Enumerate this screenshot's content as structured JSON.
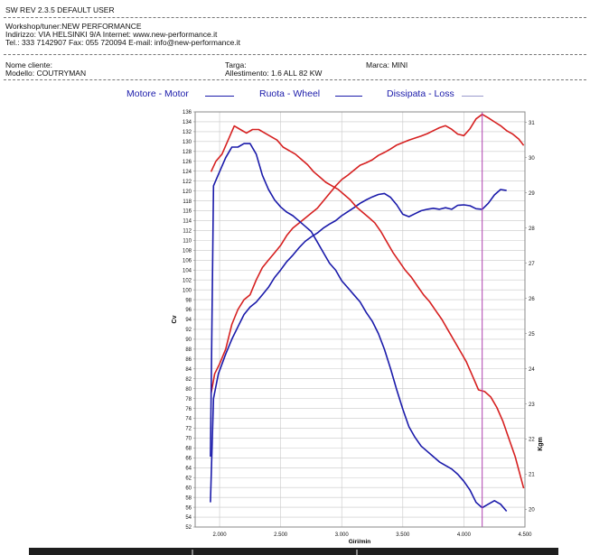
{
  "header": {
    "software": "SW REV 2.3.5   DEFAULT USER",
    "workshop": "Workshop/tuner:NEW PERFORMANCE",
    "address": "Indirizzo: VIA HELSINKI 9/A Internet: www.new-performance.it",
    "contacts": "Tel.: 333 7142907 Fax: 055 720094 E-mail: info@new-performance.it"
  },
  "vehicle": {
    "client_label": "Nome cliente:",
    "model_label": "Modello: COUTRYMAN",
    "plate_label": "Targa:",
    "setup_label": "Allestimento: 1.6 ALL 82 KW",
    "make_label": "Marca: MINI"
  },
  "legend": [
    {
      "name": "Motore - Motor",
      "color": "#d62020",
      "style": "solid"
    },
    {
      "name": "Ruota - Wheel",
      "color": "#1a1aaa",
      "style": "solid"
    },
    {
      "name": "Dissipata - Loss",
      "color": "#9a9acc",
      "style": "thin"
    }
  ],
  "colors": {
    "engine": "#d62020",
    "wheel": "#1a1aaa",
    "cursor": "#b040b0",
    "grid": "#c8c8c8"
  },
  "chart_data": {
    "type": "line",
    "xlabel": "Giri/min",
    "ylabel": "Cv",
    "y2label": "Kgm",
    "xlim": [
      1800,
      4500
    ],
    "ylim": [
      52,
      136
    ],
    "y2lim": [
      19.5,
      31.3
    ],
    "x_ticks": [
      "2.000",
      "2.500",
      "3.000",
      "3.500",
      "4.000",
      "4.500"
    ],
    "x_tick_values": [
      2000,
      2500,
      3000,
      3500,
      4000,
      4500
    ],
    "y_tick_values": [
      52,
      54,
      56,
      58,
      60,
      62,
      64,
      66,
      68,
      70,
      72,
      74,
      76,
      78,
      80,
      82,
      84,
      86,
      88,
      90,
      92,
      94,
      96,
      98,
      100,
      102,
      104,
      106,
      108,
      110,
      112,
      114,
      116,
      118,
      120,
      122,
      124,
      126,
      128,
      130,
      132,
      134,
      136
    ],
    "y2_tick_values": [
      20,
      21,
      22,
      23,
      24,
      25,
      26,
      27,
      28,
      29,
      30,
      31
    ],
    "grid": true,
    "cursor_rpm": 4150,
    "series": [
      {
        "name": "Motore - Motor",
        "key": "engine_power",
        "axis": "left",
        "x": [
          1930,
          1960,
          2000,
          2050,
          2100,
          2150,
          2200,
          2250,
          2300,
          2350,
          2400,
          2450,
          2500,
          2550,
          2600,
          2650,
          2700,
          2750,
          2800,
          2850,
          2900,
          2950,
          3000,
          3050,
          3100,
          3150,
          3200,
          3250,
          3300,
          3350,
          3400,
          3450,
          3500,
          3550,
          3600,
          3650,
          3700,
          3750,
          3800,
          3850,
          3900,
          3950,
          4000,
          4050,
          4100,
          4150,
          4200,
          4250,
          4300,
          4350,
          4400,
          4450,
          4490
        ],
        "y": [
          79,
          83,
          85,
          88,
          93,
          96,
          98,
          99,
          102,
          104.5,
          106,
          107.5,
          109,
          111,
          112.5,
          113.5,
          114.5,
          115.5,
          116.5,
          118,
          119.5,
          121,
          122.3,
          123.2,
          124.2,
          125.2,
          125.7,
          126.3,
          127.2,
          127.8,
          128.5,
          129.3,
          129.8,
          130.3,
          130.7,
          131.1,
          131.6,
          132.2,
          132.8,
          133.2,
          132.5,
          131.5,
          131.2,
          132.6,
          134.6,
          135.5,
          134.8,
          134,
          133.2,
          132.2,
          131.5,
          130.5,
          129.2
        ]
      },
      {
        "name": "Ruota - Wheel",
        "key": "wheel_power",
        "axis": "left",
        "x": [
          1925,
          1950,
          1990,
          2050,
          2100,
          2150,
          2200,
          2250,
          2300,
          2350,
          2400,
          2450,
          2500,
          2550,
          2600,
          2650,
          2700,
          2750,
          2800,
          2850,
          2900,
          2950,
          3000,
          3050,
          3100,
          3150,
          3200,
          3250,
          3300,
          3350,
          3400,
          3450,
          3500,
          3550,
          3600,
          3650,
          3700,
          3750,
          3800,
          3850,
          3900,
          3950,
          4000,
          4050,
          4100,
          4150,
          4200,
          4250,
          4300,
          4350
        ],
        "y": [
          57,
          78,
          83,
          87,
          90,
          92.5,
          95,
          96.5,
          97.5,
          99,
          100.5,
          102.5,
          104,
          105.7,
          107,
          108.5,
          109.8,
          110.7,
          111.5,
          112.5,
          113.3,
          114,
          115,
          115.8,
          116.6,
          117.5,
          118.2,
          118.8,
          119.3,
          119.5,
          118.7,
          117.2,
          115.3,
          114.8,
          115.4,
          116,
          116.3,
          116.5,
          116.3,
          116.6,
          116.3,
          117.1,
          117.2,
          117,
          116.4,
          116.3,
          117.5,
          119.2,
          120.3,
          120.1
        ]
      },
      {
        "name": "Motore - Motor (coppia)",
        "key": "engine_torque",
        "axis": "right",
        "x": [
          1930,
          1970,
          2020,
          2070,
          2120,
          2170,
          2220,
          2270,
          2320,
          2370,
          2420,
          2470,
          2520,
          2570,
          2620,
          2670,
          2720,
          2770,
          2820,
          2870,
          2920,
          2970,
          3020,
          3070,
          3120,
          3170,
          3220,
          3270,
          3320,
          3370,
          3420,
          3470,
          3520,
          3570,
          3620,
          3670,
          3720,
          3770,
          3820,
          3870,
          3920,
          3970,
          4020,
          4070,
          4120,
          4170,
          4220,
          4270,
          4320,
          4370,
          4420,
          4490
        ],
        "y": [
          29.6,
          29.9,
          30.1,
          30.5,
          30.9,
          30.8,
          30.7,
          30.8,
          30.8,
          30.7,
          30.6,
          30.5,
          30.3,
          30.2,
          30.1,
          29.95,
          29.8,
          29.6,
          29.45,
          29.3,
          29.2,
          29.1,
          28.95,
          28.8,
          28.6,
          28.45,
          28.3,
          28.15,
          27.9,
          27.6,
          27.3,
          27.05,
          26.8,
          26.6,
          26.35,
          26.1,
          25.9,
          25.65,
          25.4,
          25.1,
          24.8,
          24.5,
          24.2,
          23.8,
          23.4,
          23.35,
          23.2,
          22.9,
          22.5,
          22.0,
          21.5,
          20.6
        ]
      },
      {
        "name": "Ruota - Wheel (coppia)",
        "key": "wheel_torque",
        "axis": "right",
        "x": [
          1925,
          1950,
          2000,
          2050,
          2100,
          2150,
          2200,
          2250,
          2300,
          2350,
          2400,
          2450,
          2500,
          2550,
          2600,
          2650,
          2700,
          2750,
          2800,
          2850,
          2900,
          2950,
          3000,
          3050,
          3100,
          3150,
          3200,
          3250,
          3300,
          3350,
          3400,
          3450,
          3500,
          3550,
          3600,
          3650,
          3700,
          3750,
          3800,
          3850,
          3900,
          3950,
          4000,
          4050,
          4100,
          4150,
          4200,
          4250,
          4300,
          4350
        ],
        "y": [
          21.5,
          29.2,
          29.6,
          30.0,
          30.3,
          30.3,
          30.4,
          30.4,
          30.1,
          29.5,
          29.1,
          28.8,
          28.6,
          28.45,
          28.35,
          28.2,
          28.05,
          27.9,
          27.6,
          27.3,
          27.0,
          26.8,
          26.5,
          26.3,
          26.1,
          25.9,
          25.6,
          25.35,
          25.0,
          24.55,
          24.0,
          23.4,
          22.85,
          22.35,
          22.05,
          21.8,
          21.65,
          21.5,
          21.35,
          21.25,
          21.15,
          21.0,
          20.8,
          20.55,
          20.2,
          20.05,
          20.15,
          20.25,
          20.15,
          19.95
        ]
      }
    ]
  }
}
